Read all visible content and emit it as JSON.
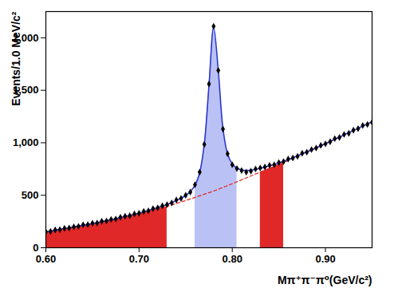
{
  "chart_data": {
    "type": "scatter",
    "x_label": "Mπ⁺π⁻π⁰(GeV/c²)",
    "y_label": "Events/1.0 MeV/c²",
    "xlim": [
      0.6,
      0.95
    ],
    "ylim": [
      0,
      2250
    ],
    "xticks": [
      0.6,
      0.7,
      0.8,
      0.9
    ],
    "yticks": [
      0,
      500,
      1000,
      1500,
      2000
    ],
    "grid": false,
    "x": [
      0.6,
      0.605,
      0.61,
      0.615,
      0.62,
      0.625,
      0.63,
      0.635,
      0.64,
      0.645,
      0.65,
      0.655,
      0.66,
      0.665,
      0.67,
      0.675,
      0.68,
      0.685,
      0.69,
      0.695,
      0.7,
      0.705,
      0.71,
      0.715,
      0.72,
      0.725,
      0.73,
      0.735,
      0.74,
      0.745,
      0.75,
      0.755,
      0.76,
      0.765,
      0.77,
      0.775,
      0.78,
      0.785,
      0.79,
      0.795,
      0.8,
      0.805,
      0.81,
      0.815,
      0.82,
      0.825,
      0.83,
      0.835,
      0.84,
      0.845,
      0.85,
      0.855,
      0.86,
      0.865,
      0.87,
      0.875,
      0.88,
      0.885,
      0.89,
      0.895,
      0.9,
      0.905,
      0.91,
      0.915,
      0.92,
      0.925,
      0.93,
      0.935,
      0.94,
      0.945,
      0.95
    ],
    "points": {
      "type": "scatter",
      "marker": "diamond",
      "color": "#000000",
      "values": [
        152,
        155,
        170,
        172,
        185,
        188,
        200,
        203,
        218,
        220,
        233,
        236,
        252,
        255,
        270,
        274,
        290,
        300,
        305,
        322,
        328,
        345,
        352,
        372,
        380,
        400,
        410,
        428,
        455,
        470,
        500,
        530,
        600,
        720,
        985,
        1560,
        2110,
        1690,
        1130,
        895,
        790,
        755,
        735,
        720,
        730,
        750,
        760,
        770,
        785,
        790,
        812,
        820,
        845,
        855,
        870,
        900,
        910,
        935,
        950,
        975,
        990,
        1010,
        1040,
        1050,
        1080,
        1090,
        1120,
        1135,
        1165,
        1175,
        1195
      ]
    },
    "fit": {
      "type": "line",
      "line_style": "solid",
      "color": "#2a35d0",
      "values": [
        150,
        158,
        166,
        174,
        182,
        190,
        198,
        206,
        214,
        222,
        230,
        239,
        248,
        258,
        267,
        277,
        286,
        298,
        308,
        319,
        330,
        342,
        356,
        369,
        383,
        397,
        412,
        430,
        450,
        472,
        498,
        535,
        595,
        715,
        990,
        1545,
        2100,
        1687,
        1135,
        892,
        800,
        758,
        742,
        735,
        739,
        747,
        757,
        768,
        781,
        794,
        808,
        823,
        840,
        858,
        876,
        895,
        914,
        933,
        953,
        972,
        992,
        1013,
        1034,
        1054,
        1075,
        1096,
        1117,
        1138,
        1159,
        1179,
        1200
      ]
    },
    "background": {
      "type": "line",
      "line_style": "dashed",
      "color": "#e02828",
      "values": [
        150,
        158,
        166,
        174,
        182,
        190,
        198,
        206,
        214,
        222,
        230,
        239,
        248,
        258,
        267,
        277,
        286,
        296,
        305,
        315,
        325,
        336,
        348,
        359,
        371,
        382,
        394,
        408,
        422,
        436,
        450,
        465,
        480,
        495,
        510,
        525,
        540,
        557,
        575,
        592,
        610,
        628,
        647,
        665,
        684,
        702,
        720,
        738,
        756,
        774,
        792,
        810,
        830,
        850,
        870,
        890,
        910,
        930,
        950,
        970,
        990,
        1011,
        1032,
        1053,
        1074,
        1095,
        1116,
        1137,
        1158,
        1179,
        1200
      ]
    },
    "signal_region": {
      "range": [
        0.76,
        0.805
      ],
      "color": "#a9b3f2"
    },
    "sideband_regions": {
      "ranges": [
        [
          0.6,
          0.73
        ],
        [
          0.83,
          0.855
        ]
      ],
      "color": "#e02828"
    }
  }
}
